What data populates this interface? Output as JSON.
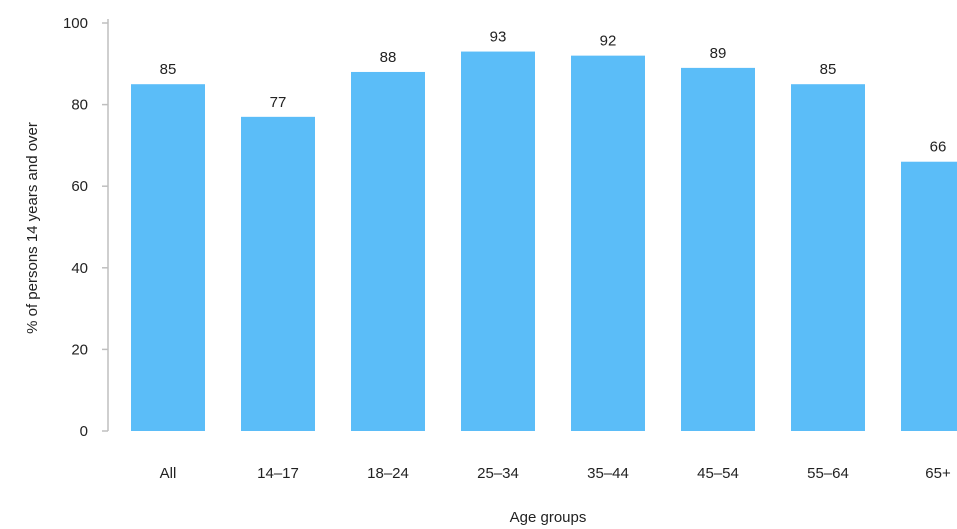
{
  "chart_data": {
    "type": "bar",
    "categories": [
      "All",
      "14–17",
      "18–24",
      "25–34",
      "35–44",
      "45–54",
      "55–64",
      "65+"
    ],
    "values": [
      85,
      77,
      88,
      93,
      92,
      89,
      85,
      66
    ],
    "data_labels": [
      "85",
      "77",
      "88",
      "93",
      "92",
      "89",
      "85",
      "66"
    ],
    "title": "",
    "xlabel": "Age groups",
    "ylabel": "% of persons 14 years and over",
    "ylim": [
      0,
      100
    ],
    "yticks": [
      0,
      20,
      40,
      60,
      80,
      100
    ],
    "ytick_labels": [
      "0",
      "20",
      "40",
      "60",
      "80",
      "100"
    ],
    "grid": false,
    "legend": "none",
    "bar_color": "#5BBDF8",
    "axis_color": "#BFBFBF"
  }
}
